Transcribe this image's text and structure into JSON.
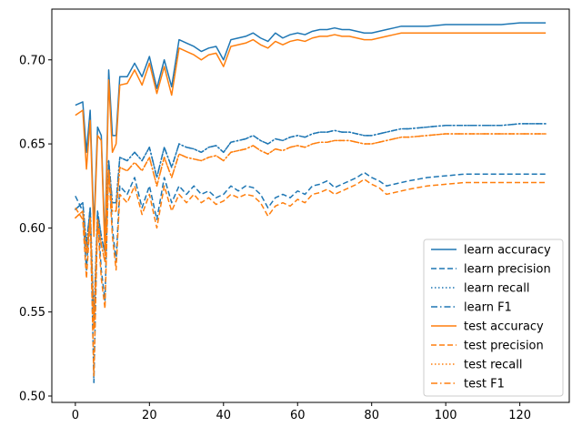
{
  "chart_data": {
    "type": "line",
    "title": "",
    "xlabel": "",
    "ylabel": "",
    "xlim": [
      -6.35,
      133.35
    ],
    "ylim": [
      0.4962,
      0.7302
    ],
    "xticks": [
      0,
      20,
      40,
      60,
      80,
      100,
      120
    ],
    "yticks": [
      0.5,
      0.55,
      0.6,
      0.65,
      0.7
    ],
    "ytick_labels": [
      "0.50",
      "0.55",
      "0.60",
      "0.65",
      "0.70"
    ],
    "grid": false,
    "legend_position": "lower-right",
    "colors": {
      "learn": "#1f77b4",
      "test": "#ff7f0e"
    },
    "series": [
      {
        "name": "learn accuracy",
        "color": "#1f77b4",
        "linestyle": "solid",
        "x": [
          0,
          2,
          3,
          4,
          5,
          6,
          7,
          8,
          9,
          10,
          11,
          12,
          14,
          16,
          18,
          20,
          22,
          24,
          26,
          28,
          30,
          32,
          34,
          36,
          38,
          40,
          42,
          44,
          46,
          48,
          50,
          52,
          54,
          56,
          58,
          60,
          62,
          64,
          66,
          68,
          70,
          72,
          74,
          76,
          78,
          80,
          82,
          84,
          86,
          88,
          90,
          95,
          100,
          105,
          110,
          115,
          120,
          127
        ],
        "y": [
          0.673,
          0.675,
          0.645,
          0.67,
          0.6,
          0.66,
          0.655,
          0.59,
          0.694,
          0.655,
          0.655,
          0.69,
          0.69,
          0.698,
          0.69,
          0.702,
          0.683,
          0.7,
          0.684,
          0.712,
          0.71,
          0.708,
          0.705,
          0.707,
          0.708,
          0.7,
          0.712,
          0.713,
          0.714,
          0.716,
          0.713,
          0.711,
          0.716,
          0.713,
          0.715,
          0.716,
          0.715,
          0.717,
          0.718,
          0.718,
          0.719,
          0.718,
          0.718,
          0.717,
          0.716,
          0.716,
          0.717,
          0.718,
          0.719,
          0.72,
          0.72,
          0.72,
          0.721,
          0.721,
          0.721,
          0.721,
          0.722,
          0.722
        ]
      },
      {
        "name": "learn precision",
        "color": "#1f77b4",
        "linestyle": "dashed",
        "x": [
          0,
          2,
          3,
          4,
          5,
          6,
          7,
          8,
          9,
          10,
          11,
          12,
          14,
          16,
          18,
          20,
          22,
          24,
          26,
          28,
          30,
          32,
          34,
          36,
          38,
          40,
          42,
          44,
          46,
          48,
          50,
          52,
          54,
          56,
          58,
          60,
          62,
          64,
          66,
          68,
          70,
          72,
          74,
          76,
          78,
          80,
          82,
          84,
          86,
          88,
          90,
          95,
          100,
          105,
          110,
          115,
          120,
          127
        ],
        "y": [
          0.619,
          0.61,
          0.575,
          0.612,
          0.508,
          0.61,
          0.575,
          0.557,
          0.64,
          0.6,
          0.58,
          0.625,
          0.62,
          0.63,
          0.612,
          0.625,
          0.605,
          0.63,
          0.615,
          0.625,
          0.62,
          0.625,
          0.62,
          0.622,
          0.618,
          0.62,
          0.625,
          0.622,
          0.625,
          0.624,
          0.62,
          0.612,
          0.618,
          0.62,
          0.618,
          0.622,
          0.62,
          0.625,
          0.626,
          0.628,
          0.624,
          0.626,
          0.628,
          0.63,
          0.633,
          0.63,
          0.628,
          0.625,
          0.626,
          0.627,
          0.628,
          0.63,
          0.631,
          0.632,
          0.632,
          0.632,
          0.632,
          0.632
        ]
      },
      {
        "name": "learn recall",
        "color": "#1f77b4",
        "linestyle": "dotted",
        "x": [
          0,
          2,
          3,
          4,
          5,
          6,
          7,
          8,
          9,
          10,
          11,
          12,
          14,
          16,
          18,
          20,
          22,
          24,
          26,
          28,
          30,
          32,
          34,
          36,
          38,
          40,
          42,
          44,
          46,
          48,
          50,
          52,
          54,
          56,
          58,
          60,
          62,
          64,
          66,
          68,
          70,
          72,
          74,
          76,
          78,
          80,
          82,
          84,
          86,
          88,
          90,
          95,
          100,
          105,
          110,
          115,
          120,
          127
        ],
        "y": [
          0.611,
          0.615,
          0.59,
          0.612,
          0.545,
          0.61,
          0.595,
          0.585,
          0.64,
          0.615,
          0.615,
          0.642,
          0.64,
          0.645,
          0.64,
          0.648,
          0.63,
          0.648,
          0.636,
          0.65,
          0.648,
          0.647,
          0.645,
          0.648,
          0.649,
          0.645,
          0.651,
          0.652,
          0.653,
          0.655,
          0.652,
          0.65,
          0.653,
          0.652,
          0.654,
          0.655,
          0.654,
          0.656,
          0.657,
          0.657,
          0.658,
          0.657,
          0.657,
          0.656,
          0.655,
          0.655,
          0.656,
          0.657,
          0.658,
          0.659,
          0.659,
          0.66,
          0.661,
          0.661,
          0.661,
          0.661,
          0.662,
          0.662
        ]
      },
      {
        "name": "learn F1",
        "color": "#1f77b4",
        "linestyle": "dashdot",
        "x": [
          0,
          2,
          3,
          4,
          5,
          6,
          7,
          8,
          9,
          10,
          11,
          12,
          14,
          16,
          18,
          20,
          22,
          24,
          26,
          28,
          30,
          32,
          34,
          36,
          38,
          40,
          42,
          44,
          46,
          48,
          50,
          52,
          54,
          56,
          58,
          60,
          62,
          64,
          66,
          68,
          70,
          72,
          74,
          76,
          78,
          80,
          82,
          84,
          86,
          88,
          90,
          95,
          100,
          105,
          110,
          115,
          120,
          127
        ],
        "y": [
          0.611,
          0.615,
          0.59,
          0.612,
          0.545,
          0.61,
          0.595,
          0.585,
          0.64,
          0.615,
          0.615,
          0.642,
          0.64,
          0.645,
          0.64,
          0.648,
          0.63,
          0.648,
          0.636,
          0.65,
          0.648,
          0.647,
          0.645,
          0.648,
          0.649,
          0.645,
          0.651,
          0.652,
          0.653,
          0.655,
          0.652,
          0.65,
          0.653,
          0.652,
          0.654,
          0.655,
          0.654,
          0.656,
          0.657,
          0.657,
          0.658,
          0.657,
          0.657,
          0.656,
          0.655,
          0.655,
          0.656,
          0.657,
          0.658,
          0.659,
          0.659,
          0.66,
          0.661,
          0.661,
          0.661,
          0.661,
          0.662,
          0.662
        ]
      },
      {
        "name": "test accuracy",
        "color": "#ff7f0e",
        "linestyle": "solid",
        "x": [
          0,
          2,
          3,
          4,
          5,
          6,
          7,
          8,
          9,
          10,
          11,
          12,
          14,
          16,
          18,
          20,
          22,
          24,
          26,
          28,
          30,
          32,
          34,
          36,
          38,
          40,
          42,
          44,
          46,
          48,
          50,
          52,
          54,
          56,
          58,
          60,
          62,
          64,
          66,
          68,
          70,
          72,
          74,
          76,
          78,
          80,
          82,
          84,
          86,
          88,
          90,
          95,
          100,
          105,
          110,
          115,
          120,
          127
        ],
        "y": [
          0.667,
          0.67,
          0.635,
          0.664,
          0.595,
          0.655,
          0.652,
          0.585,
          0.688,
          0.645,
          0.65,
          0.685,
          0.686,
          0.694,
          0.685,
          0.698,
          0.68,
          0.696,
          0.679,
          0.707,
          0.705,
          0.703,
          0.7,
          0.703,
          0.704,
          0.696,
          0.708,
          0.709,
          0.71,
          0.712,
          0.709,
          0.707,
          0.711,
          0.709,
          0.711,
          0.712,
          0.711,
          0.713,
          0.714,
          0.714,
          0.715,
          0.714,
          0.714,
          0.713,
          0.712,
          0.712,
          0.713,
          0.714,
          0.715,
          0.716,
          0.716,
          0.716,
          0.716,
          0.716,
          0.716,
          0.716,
          0.716,
          0.716
        ]
      },
      {
        "name": "test precision",
        "color": "#ff7f0e",
        "linestyle": "dashed",
        "x": [
          0,
          2,
          3,
          4,
          5,
          6,
          7,
          8,
          9,
          10,
          11,
          12,
          14,
          16,
          18,
          20,
          22,
          24,
          26,
          28,
          30,
          32,
          34,
          36,
          38,
          40,
          42,
          44,
          46,
          48,
          50,
          52,
          54,
          56,
          58,
          60,
          62,
          64,
          66,
          68,
          70,
          72,
          74,
          76,
          78,
          80,
          82,
          84,
          86,
          88,
          90,
          95,
          100,
          105,
          110,
          115,
          120,
          127
        ],
        "y": [
          0.612,
          0.605,
          0.57,
          0.605,
          0.512,
          0.604,
          0.57,
          0.552,
          0.635,
          0.595,
          0.575,
          0.62,
          0.615,
          0.625,
          0.608,
          0.62,
          0.6,
          0.625,
          0.61,
          0.62,
          0.615,
          0.62,
          0.615,
          0.618,
          0.614,
          0.616,
          0.62,
          0.618,
          0.62,
          0.619,
          0.615,
          0.607,
          0.613,
          0.615,
          0.613,
          0.617,
          0.615,
          0.62,
          0.621,
          0.623,
          0.62,
          0.622,
          0.624,
          0.626,
          0.629,
          0.626,
          0.624,
          0.62,
          0.621,
          0.622,
          0.623,
          0.625,
          0.626,
          0.627,
          0.627,
          0.627,
          0.627,
          0.627
        ]
      },
      {
        "name": "test recall",
        "color": "#ff7f0e",
        "linestyle": "dotted",
        "x": [
          0,
          2,
          3,
          4,
          5,
          6,
          7,
          8,
          9,
          10,
          11,
          12,
          14,
          16,
          18,
          20,
          22,
          24,
          26,
          28,
          30,
          32,
          34,
          36,
          38,
          40,
          42,
          44,
          46,
          48,
          50,
          52,
          54,
          56,
          58,
          60,
          62,
          64,
          66,
          68,
          70,
          72,
          74,
          76,
          78,
          80,
          82,
          84,
          86,
          88,
          90,
          95,
          100,
          105,
          110,
          115,
          120,
          127
        ],
        "y": [
          0.606,
          0.61,
          0.585,
          0.606,
          0.54,
          0.605,
          0.59,
          0.58,
          0.635,
          0.61,
          0.61,
          0.636,
          0.634,
          0.639,
          0.634,
          0.642,
          0.625,
          0.642,
          0.63,
          0.644,
          0.642,
          0.641,
          0.64,
          0.642,
          0.643,
          0.64,
          0.645,
          0.646,
          0.647,
          0.649,
          0.646,
          0.644,
          0.647,
          0.646,
          0.648,
          0.649,
          0.648,
          0.65,
          0.651,
          0.651,
          0.652,
          0.652,
          0.652,
          0.651,
          0.65,
          0.65,
          0.651,
          0.652,
          0.653,
          0.654,
          0.654,
          0.655,
          0.656,
          0.656,
          0.656,
          0.656,
          0.656,
          0.656
        ]
      },
      {
        "name": "test F1",
        "color": "#ff7f0e",
        "linestyle": "dashdot",
        "x": [
          0,
          2,
          3,
          4,
          5,
          6,
          7,
          8,
          9,
          10,
          11,
          12,
          14,
          16,
          18,
          20,
          22,
          24,
          26,
          28,
          30,
          32,
          34,
          36,
          38,
          40,
          42,
          44,
          46,
          48,
          50,
          52,
          54,
          56,
          58,
          60,
          62,
          64,
          66,
          68,
          70,
          72,
          74,
          76,
          78,
          80,
          82,
          84,
          86,
          88,
          90,
          95,
          100,
          105,
          110,
          115,
          120,
          127
        ],
        "y": [
          0.606,
          0.61,
          0.585,
          0.606,
          0.54,
          0.605,
          0.59,
          0.58,
          0.635,
          0.61,
          0.61,
          0.636,
          0.634,
          0.639,
          0.634,
          0.642,
          0.625,
          0.642,
          0.63,
          0.644,
          0.642,
          0.641,
          0.64,
          0.642,
          0.643,
          0.64,
          0.645,
          0.646,
          0.647,
          0.649,
          0.646,
          0.644,
          0.647,
          0.646,
          0.648,
          0.649,
          0.648,
          0.65,
          0.651,
          0.651,
          0.652,
          0.652,
          0.652,
          0.651,
          0.65,
          0.65,
          0.651,
          0.652,
          0.653,
          0.654,
          0.654,
          0.655,
          0.656,
          0.656,
          0.656,
          0.656,
          0.656,
          0.656
        ]
      }
    ]
  }
}
